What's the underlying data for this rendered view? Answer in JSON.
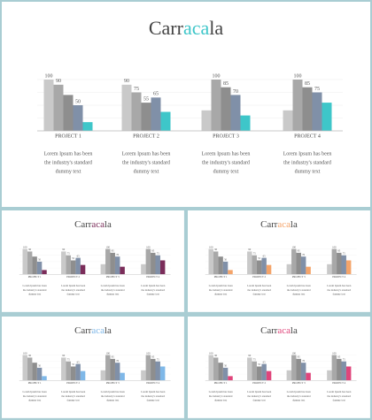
{
  "slide": {
    "title_parts": [
      "Carr",
      "aca",
      "la"
    ],
    "accent": "#3ec6c9",
    "chart_data": {
      "type": "bar",
      "categories": [
        "PROJECT 1",
        "PROJECT 2",
        "PROJECT 3",
        "PROJECT 4"
      ],
      "ylim": [
        0,
        100
      ],
      "series": [
        {
          "color": "#c9c9c9",
          "values": [
            100,
            90,
            40,
            40
          ],
          "value_labels": [
            100,
            90,
            null,
            null
          ]
        },
        {
          "color": "#a8a8a8",
          "values": [
            90,
            75,
            100,
            100
          ],
          "value_labels": [
            90,
            75,
            100,
            100
          ]
        },
        {
          "color": "#8e8e8e",
          "values": [
            70,
            55,
            85,
            85
          ],
          "value_labels": [
            null,
            55,
            85,
            85
          ]
        },
        {
          "color": "#8090a8",
          "values": [
            50,
            65,
            70,
            75
          ],
          "value_labels": [
            50,
            65,
            70,
            75
          ]
        },
        {
          "color": "#3ec6c9",
          "values": [
            17,
            37,
            30,
            55
          ],
          "value_labels": [
            null,
            null,
            null,
            null
          ]
        }
      ]
    },
    "descriptions": [
      [
        "Lorem Ipsum has been",
        "the industry's standard",
        "dummy text"
      ],
      [
        "Lorem Ipsum has been",
        "the industry's standard",
        "dummy text"
      ],
      [
        "Lorem Ipsum has been",
        "the industry's standard",
        "dummy text"
      ],
      [
        "Lorem Ipsum has been",
        "the industry's standard",
        "dummy text"
      ]
    ]
  },
  "thumbnails": [
    {
      "accent": "#7b2d5a"
    },
    {
      "accent": "#f4a46a"
    },
    {
      "accent": "#7fb8e8"
    },
    {
      "accent": "#e0457b"
    }
  ]
}
